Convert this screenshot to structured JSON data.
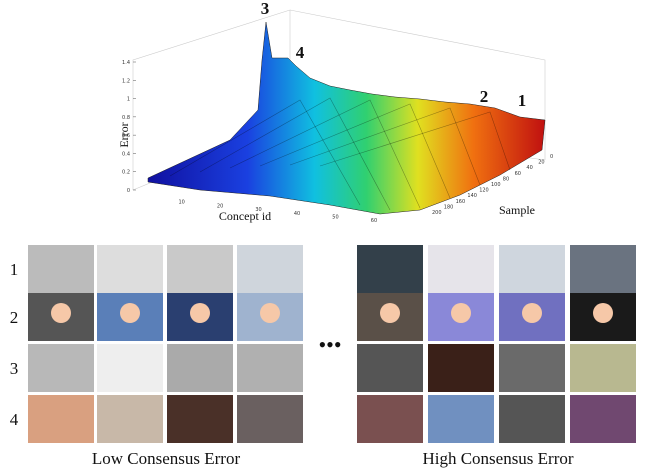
{
  "plot": {
    "z_label": "Error",
    "x_label": "Concept id",
    "y_label": "Sample",
    "zticks": [
      0,
      0.2,
      0.4,
      0.6,
      0.8,
      1,
      1.2,
      1.4
    ],
    "xticks": [
      10,
      20,
      30,
      40,
      50,
      60
    ],
    "yticks": [
      0,
      20,
      40,
      60,
      80,
      100,
      120,
      140,
      160,
      180,
      200
    ],
    "peak_labels": [
      "3",
      "4",
      "2",
      "1"
    ]
  },
  "grid": {
    "rows": [
      "1",
      "2",
      "3",
      "4"
    ],
    "separator": "•••",
    "left_caption": "Low Consensus Error",
    "right_caption": "High Consensus Error"
  }
}
